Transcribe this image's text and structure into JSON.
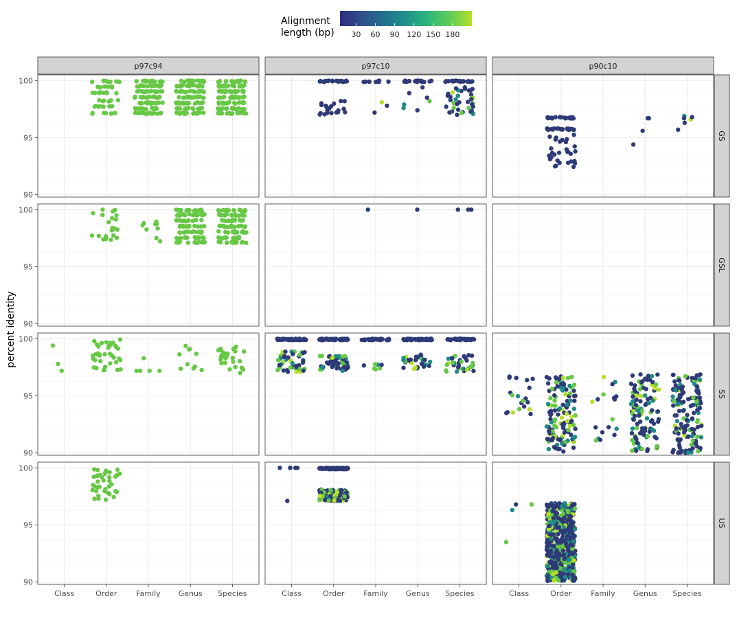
{
  "chart_data": {
    "type": "scatter",
    "ylabel": "percent identity",
    "xlabel": "",
    "categories": [
      "Class",
      "Order",
      "Family",
      "Genus",
      "Species"
    ],
    "ylim": [
      89.8,
      100.5
    ],
    "yticks": [
      90,
      95,
      100
    ],
    "columns": [
      "p97c94",
      "p97c10",
      "p90c10"
    ],
    "rows": [
      "GS",
      "GSL",
      "SS",
      "US"
    ],
    "legend": {
      "title_line1": "Alignment",
      "title_line2": "length (bp)",
      "ticks": [
        30,
        60,
        90,
        120,
        150,
        180
      ],
      "range": [
        5,
        210
      ],
      "colors": [
        "#2e2f7f",
        "#2f4f8b",
        "#24708e",
        "#1f928b",
        "#2db67a",
        "#5fcd58",
        "#b8de29"
      ],
      "position": "top"
    },
    "palette": {
      "dark": "#2e3a78",
      "teal": "#1f8a86",
      "green": "#67c845",
      "light": "#b6e026"
    },
    "panels": [
      {
        "col": "p97c94",
        "row": "GS",
        "groups": [
          {
            "cat": "Order",
            "n": 45,
            "levels": [
              100,
              99.5,
              99,
              98.3,
              97.8,
              97.2
            ],
            "color": "green"
          },
          {
            "cat": "Family",
            "n": 110,
            "levels": [
              100,
              99.6,
              99.1,
              98.6,
              98.1,
              97.6,
              97.2
            ],
            "color": "green"
          },
          {
            "cat": "Genus",
            "n": 120,
            "levels": [
              100,
              99.6,
              99.1,
              98.6,
              98.1,
              97.6,
              97.2
            ],
            "color": "green"
          },
          {
            "cat": "Species",
            "n": 130,
            "levels": [
              100,
              99.6,
              99.1,
              98.6,
              98.1,
              97.6,
              97.2
            ],
            "color": "green"
          }
        ]
      },
      {
        "col": "p97c10",
        "row": "GS",
        "groups": [
          {
            "cat": "Order",
            "n": 24,
            "levels": [
              100
            ],
            "color": "dark"
          },
          {
            "cat": "Order",
            "n": 20,
            "range": [
              97,
              98.3
            ],
            "color": "dark"
          },
          {
            "cat": "Family",
            "n": 10,
            "levels": [
              100
            ],
            "color": "dark"
          },
          {
            "cat": "Family",
            "n": 3,
            "points": [
              98.1,
              97.8,
              97.2
            ],
            "color": "mix"
          },
          {
            "cat": "Genus",
            "n": 22,
            "levels": [
              100
            ],
            "color": "dark"
          },
          {
            "cat": "Genus",
            "n": 7,
            "points": [
              99.4,
              98.9,
              98.5,
              97.9,
              97.6,
              98.2,
              97.4
            ],
            "color": "mix"
          },
          {
            "cat": "Species",
            "n": 22,
            "levels": [
              100
            ],
            "color": "dark"
          },
          {
            "cat": "Species",
            "n": 40,
            "range": [
              97,
              99.5
            ],
            "color": "mix"
          }
        ]
      },
      {
        "col": "p90c10",
        "row": "GS",
        "groups": [
          {
            "cat": "Order",
            "n": 60,
            "levels": [
              96.8,
              95.8
            ],
            "color": "dark"
          },
          {
            "cat": "Order",
            "n": 30,
            "range": [
              92.4,
              95.3
            ],
            "color": "dark"
          },
          {
            "cat": "Genus",
            "n": 4,
            "points": [
              96.7,
              95.6,
              94.4,
              96.7
            ],
            "color": "dark"
          },
          {
            "cat": "Species",
            "n": 6,
            "points": [
              96.9,
              96.7,
              96.3,
              96.6,
              95.7,
              96.8
            ],
            "color": "mix"
          }
        ]
      },
      {
        "col": "p97c94",
        "row": "GSL",
        "groups": [
          {
            "cat": "Order",
            "n": 22,
            "range": [
              97.2,
              100
            ],
            "color": "green"
          },
          {
            "cat": "Family",
            "n": 10,
            "range": [
              97.2,
              99.5
            ],
            "color": "green"
          },
          {
            "cat": "Genus",
            "n": 110,
            "levels": [
              100,
              99.6,
              99.1,
              98.6,
              98.1,
              97.6,
              97.2
            ],
            "color": "green"
          },
          {
            "cat": "Species",
            "n": 110,
            "levels": [
              100,
              99.6,
              99.1,
              98.6,
              98.1,
              97.6,
              97.2
            ],
            "color": "green"
          }
        ]
      },
      {
        "col": "p97c10",
        "row": "GSL",
        "groups": [
          {
            "cat": "Family",
            "n": 1,
            "points": [
              100
            ],
            "color": "dark"
          },
          {
            "cat": "Genus",
            "n": 1,
            "points": [
              100
            ],
            "color": "dark"
          },
          {
            "cat": "Species",
            "n": 3,
            "points": [
              100,
              100,
              100
            ],
            "color": "dark"
          }
        ]
      },
      {
        "col": "p90c10",
        "row": "GSL",
        "groups": []
      },
      {
        "col": "p97c94",
        "row": "SS",
        "groups": [
          {
            "cat": "Class",
            "n": 3,
            "points": [
              99.4,
              97.8,
              97.2
            ],
            "color": "green"
          },
          {
            "cat": "Order",
            "n": 40,
            "range": [
              97.2,
              100
            ],
            "color": "green"
          },
          {
            "cat": "Family",
            "n": 5,
            "points": [
              98.3,
              97.2,
              97.2,
              97.2,
              97.2
            ],
            "color": "green"
          },
          {
            "cat": "Genus",
            "n": 10,
            "range": [
              97.2,
              99.4
            ],
            "color": "green"
          },
          {
            "cat": "Species",
            "n": 30,
            "range": [
              97,
              99.4
            ],
            "color": "green"
          }
        ]
      },
      {
        "col": "p97c10",
        "row": "SS",
        "groups": [
          {
            "cat": "Class",
            "n": 50,
            "levels": [
              100
            ],
            "color": "dark"
          },
          {
            "cat": "Class",
            "n": 45,
            "range": [
              97.1,
              98.9
            ],
            "color": "mix"
          },
          {
            "cat": "Order",
            "n": 60,
            "levels": [
              100
            ],
            "color": "dark"
          },
          {
            "cat": "Order",
            "n": 60,
            "range": [
              97.2,
              98.5
            ],
            "color": "mix"
          },
          {
            "cat": "Family",
            "n": 35,
            "levels": [
              100
            ],
            "color": "dark"
          },
          {
            "cat": "Family",
            "n": 7,
            "range": [
              97.3,
              97.8
            ],
            "color": "mix"
          },
          {
            "cat": "Genus",
            "n": 60,
            "levels": [
              100
            ],
            "color": "dark"
          },
          {
            "cat": "Genus",
            "n": 30,
            "range": [
              97.3,
              98.6
            ],
            "color": "mix"
          },
          {
            "cat": "Species",
            "n": 40,
            "levels": [
              100
            ],
            "color": "dark"
          },
          {
            "cat": "Species",
            "n": 35,
            "range": [
              97.1,
              98.6
            ],
            "color": "mix"
          }
        ]
      },
      {
        "col": "p90c10",
        "row": "SS",
        "groups": [
          {
            "cat": "Class",
            "n": 20,
            "range": [
              93.4,
              96.9
            ],
            "color": "mix"
          },
          {
            "cat": "Order",
            "n": 130,
            "range": [
              90.1,
              96.9
            ],
            "color": "mix"
          },
          {
            "cat": "Family",
            "n": 18,
            "range": [
              90.8,
              96.7
            ],
            "color": "mix"
          },
          {
            "cat": "Genus",
            "n": 110,
            "range": [
              90,
              96.9
            ],
            "color": "mix"
          },
          {
            "cat": "Species",
            "n": 150,
            "range": [
              90,
              96.9
            ],
            "color": "mix"
          }
        ]
      },
      {
        "col": "p97c94",
        "row": "US",
        "groups": [
          {
            "cat": "Order",
            "n": 38,
            "range": [
              97.2,
              100
            ],
            "color": "green"
          }
        ]
      },
      {
        "col": "p97c10",
        "row": "US",
        "groups": [
          {
            "cat": "Class",
            "n": 6,
            "points": [
              100,
              100,
              100,
              100,
              100,
              97.1
            ],
            "color": "dark"
          },
          {
            "cat": "Order",
            "n": 80,
            "levels": [
              100
            ],
            "color": "dark"
          },
          {
            "cat": "Order",
            "n": 110,
            "range": [
              97.1,
              98.1
            ],
            "color": "mix"
          }
        ]
      },
      {
        "col": "p90c10",
        "row": "US",
        "groups": [
          {
            "cat": "Class",
            "n": 4,
            "points": [
              96.3,
              96.8,
              96.8,
              93.5
            ],
            "color": "mix"
          },
          {
            "cat": "Order",
            "n": 600,
            "range": [
              90.1,
              96.9
            ],
            "color": "mix"
          }
        ]
      }
    ]
  }
}
